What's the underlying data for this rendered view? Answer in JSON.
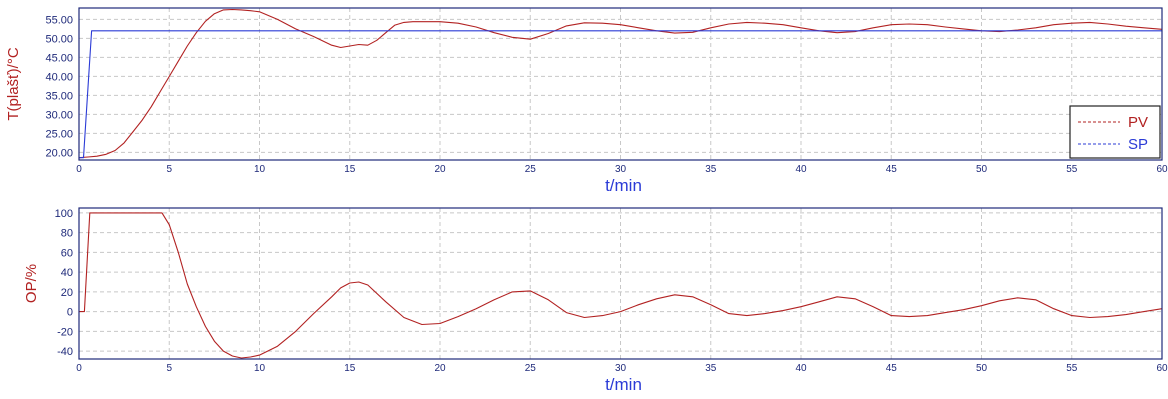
{
  "colors": {
    "pv": "#b22222",
    "sp": "#2b3bd6",
    "frame": "#1f2a7a",
    "grid": "#c8c8c8",
    "tick_x": "#1f2a7a",
    "axis_title_x": "#2b3bd6",
    "axis_title_y": "#b22222"
  },
  "chart_data": [
    {
      "type": "line",
      "xlabel": "t/min",
      "ylabel": "T(plašť)/°C",
      "xlim": [
        0,
        60
      ],
      "ylim": [
        18,
        58
      ],
      "grid": true,
      "legend_position": "right",
      "x_ticks": [
        "0",
        "5",
        "10",
        "15",
        "20",
        "25",
        "30",
        "35",
        "40",
        "45",
        "50",
        "55",
        "60"
      ],
      "y_ticks": [
        "20.00",
        "25.00",
        "30.00",
        "35.00",
        "40.00",
        "45.00",
        "50.00",
        "55.00"
      ],
      "legend": [
        "PV",
        "SP"
      ],
      "series": [
        {
          "name": "PV",
          "color": "#b22222",
          "x": [
            0,
            0.5,
            1,
            1.5,
            2,
            2.5,
            3,
            3.5,
            4,
            4.5,
            5,
            5.5,
            6,
            6.5,
            7,
            7.5,
            8,
            8.5,
            9,
            9.5,
            10,
            11,
            12,
            13,
            14,
            14.5,
            15,
            15.5,
            16,
            16.5,
            17,
            17.5,
            18,
            18.5,
            19,
            20,
            21,
            22,
            23,
            24,
            25,
            26,
            27,
            28,
            29,
            30,
            31,
            32,
            33,
            34,
            35,
            36,
            37,
            38,
            39,
            40,
            41,
            42,
            43,
            44,
            45,
            46,
            47,
            48,
            49,
            50,
            51,
            52,
            53,
            54,
            55,
            56,
            57,
            58,
            59,
            60
          ],
          "y": [
            18.6,
            18.8,
            19.0,
            19.5,
            20.5,
            22.5,
            25.5,
            28.5,
            32.0,
            36.0,
            40.0,
            44.0,
            48.0,
            51.5,
            54.5,
            56.5,
            57.5,
            57.6,
            57.5,
            57.3,
            57.0,
            55.0,
            52.5,
            50.5,
            48.2,
            47.6,
            48.0,
            48.4,
            48.2,
            49.5,
            51.5,
            53.5,
            54.2,
            54.4,
            54.4,
            54.4,
            54.0,
            53.0,
            51.5,
            50.3,
            49.8,
            51.3,
            53.3,
            54.1,
            54.0,
            53.6,
            52.8,
            52.0,
            51.4,
            51.6,
            52.8,
            53.8,
            54.2,
            54.0,
            53.6,
            52.8,
            52.0,
            51.5,
            51.8,
            52.8,
            53.6,
            53.8,
            53.6,
            53.0,
            52.5,
            52.0,
            51.8,
            52.2,
            52.8,
            53.6,
            54.0,
            54.2,
            53.8,
            53.2,
            52.8,
            52.4
          ]
        },
        {
          "name": "SP",
          "color": "#2b3bd6",
          "x": [
            0,
            0.25,
            0.7,
            60
          ],
          "y": [
            18.6,
            18.6,
            52.0,
            52.0
          ]
        }
      ]
    },
    {
      "type": "line",
      "xlabel": "t/min",
      "ylabel": "OP/%",
      "xlim": [
        0,
        60
      ],
      "ylim": [
        -48,
        105
      ],
      "grid": true,
      "x_ticks": [
        "0",
        "5",
        "10",
        "15",
        "20",
        "25",
        "30",
        "35",
        "40",
        "45",
        "50",
        "55",
        "60"
      ],
      "y_ticks": [
        "-40",
        "-20",
        "0",
        "20",
        "40",
        "60",
        "80",
        "100"
      ],
      "series": [
        {
          "name": "OP",
          "color": "#b22222",
          "x": [
            0,
            0.3,
            0.6,
            1,
            2,
            3,
            4,
            4.6,
            5,
            5.5,
            6,
            6.5,
            7,
            7.5,
            8,
            8.5,
            9,
            9.5,
            10,
            11,
            12,
            13,
            14,
            14.5,
            15,
            15.5,
            16,
            17,
            18,
            19,
            20,
            21,
            22,
            23,
            24,
            25,
            26,
            27,
            28,
            29,
            30,
            31,
            32,
            33,
            34,
            35,
            36,
            37,
            38,
            39,
            40,
            41,
            42,
            43,
            44,
            45,
            46,
            47,
            48,
            49,
            50,
            51,
            52,
            53,
            54,
            55,
            56,
            57,
            58,
            59,
            60
          ],
          "y": [
            0,
            0,
            100,
            100,
            100,
            100,
            100,
            100,
            88,
            60,
            28,
            5,
            -15,
            -30,
            -40,
            -45,
            -47,
            -46,
            -44,
            -35,
            -20,
            -2,
            15,
            24,
            29,
            30,
            27,
            10,
            -6,
            -13,
            -12,
            -5,
            3,
            12,
            20,
            21,
            12,
            -1,
            -6,
            -4,
            0,
            7,
            13,
            17,
            15,
            7,
            -2,
            -4,
            -2,
            1,
            5,
            10,
            15,
            13,
            5,
            -4,
            -5,
            -4,
            -1,
            2,
            6,
            11,
            14,
            12,
            3,
            -4,
            -6,
            -5,
            -3,
            0,
            3
          ]
        }
      ]
    }
  ]
}
